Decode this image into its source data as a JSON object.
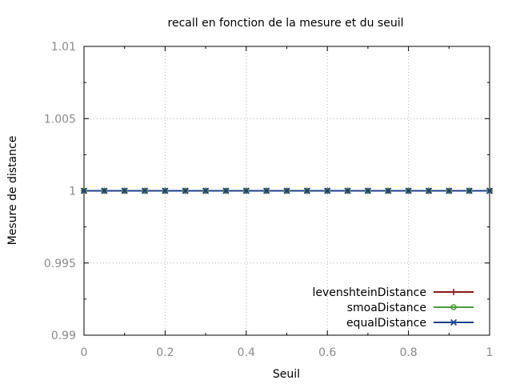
{
  "chart_data": {
    "type": "line",
    "title": "recall en fonction de la mesure et du seuil",
    "xlabel": "Seuil",
    "ylabel": "Mesure de distance",
    "xlim": [
      0,
      1
    ],
    "ylim": [
      0.99,
      1.01
    ],
    "x_ticks": [
      0,
      0.2,
      0.4,
      0.6,
      0.8,
      1
    ],
    "x_tick_labels": [
      "0",
      "0.2",
      "0.4",
      "0.6",
      "0.8",
      "1"
    ],
    "y_ticks": [
      0.99,
      0.995,
      1,
      1.005,
      1.01
    ],
    "y_tick_labels": [
      "0.99",
      "0.995",
      "1",
      "1.005",
      "1.01"
    ],
    "grid": true,
    "legend_position": "bottom-right",
    "x": [
      0,
      0.05,
      0.1,
      0.15,
      0.2,
      0.25,
      0.3,
      0.35,
      0.4,
      0.45,
      0.5,
      0.55,
      0.6,
      0.65,
      0.7,
      0.75,
      0.8,
      0.85,
      0.9,
      0.95,
      1
    ],
    "series": [
      {
        "name": "levenshteinDistance",
        "color": "#8b1a1a",
        "marker": "plus",
        "values": [
          1,
          1,
          1,
          1,
          1,
          1,
          1,
          1,
          1,
          1,
          1,
          1,
          1,
          1,
          1,
          1,
          1,
          1,
          1,
          1,
          1
        ]
      },
      {
        "name": "smoaDistance",
        "color": "#4a9a3a",
        "marker": "circle",
        "values": [
          1,
          1,
          1,
          1,
          1,
          1,
          1,
          1,
          1,
          1,
          1,
          1,
          1,
          1,
          1,
          1,
          1,
          1,
          1,
          1,
          1
        ]
      },
      {
        "name": "equalDistance",
        "color": "#1e3f8f",
        "marker": "cross",
        "values": [
          1,
          1,
          1,
          1,
          1,
          1,
          1,
          1,
          1,
          1,
          1,
          1,
          1,
          1,
          1,
          1,
          1,
          1,
          1,
          1,
          1
        ]
      }
    ]
  }
}
